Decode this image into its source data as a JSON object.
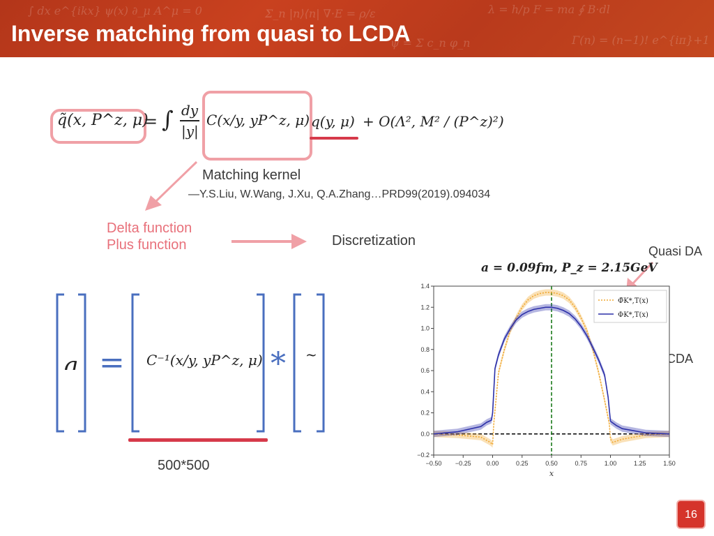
{
  "slide": {
    "title": "Inverse matching from quasi to LCDA",
    "page_number": "16"
  },
  "equation_top": {
    "lhs": "q̃(x, P^z, μ)",
    "equals": "=",
    "integral": "∫",
    "frac_num": "dy",
    "frac_den": "|y|",
    "kernel": "C(x/y, yP^z, μ)",
    "rhs": "q(y, μ)",
    "correction": "+ O(Λ², M² / (P^z)²)"
  },
  "annotations": {
    "matching_kernel": "Matching kernel",
    "reference": "—Y.S.Liu, W.Wang, J.Xu, Q.A.Zhang…PRD99(2019).094034",
    "delta_function": "Delta function",
    "plus_function": "Plus function",
    "discretization": "Discretization",
    "quasi_da": "Quasi DA",
    "lcda": "LCDA",
    "matrix_size": "500*500"
  },
  "matrix_equation": {
    "lhs_symbol": "q",
    "equals": "=",
    "kernel": "C⁻¹(x/y, yP^z, μ)",
    "star": "*",
    "tilde": "~"
  },
  "chart_data": {
    "type": "line",
    "title": "a = 0.09fm, P_z = 2.15GeV",
    "xlabel": "x",
    "ylabel": "",
    "xlim": [
      -0.5,
      1.5
    ],
    "ylim": [
      -0.2,
      1.4
    ],
    "xticks": [
      "−0.50",
      "−0.25",
      "0.00",
      "0.25",
      "0.50",
      "0.75",
      "1.00",
      "1.25",
      "1.50"
    ],
    "yticks": [
      "−0.2",
      "0.0",
      "0.2",
      "0.4",
      "0.6",
      "0.8",
      "1.0",
      "1.2",
      "1.4"
    ],
    "legend_position": "top-right",
    "legend": [
      "Φ̃K*,T(x)",
      "ΦK*,T(x)"
    ],
    "vline_x": 0.5,
    "hline_y": 0.0,
    "series": [
      {
        "name": "Φ̃K*,T(x)",
        "color": "#f0a830",
        "style": "dotted",
        "x": [
          -0.5,
          -0.3,
          -0.1,
          -0.02,
          0.0,
          0.01,
          0.05,
          0.1,
          0.15,
          0.2,
          0.25,
          0.3,
          0.35,
          0.4,
          0.45,
          0.5,
          0.55,
          0.6,
          0.65,
          0.7,
          0.75,
          0.8,
          0.85,
          0.9,
          0.95,
          0.99,
          1.0,
          1.02,
          1.1,
          1.3,
          1.5
        ],
        "y": [
          0.0,
          -0.01,
          -0.03,
          -0.08,
          -0.1,
          0.1,
          0.58,
          0.8,
          0.98,
          1.1,
          1.2,
          1.27,
          1.31,
          1.33,
          1.34,
          1.34,
          1.33,
          1.31,
          1.27,
          1.2,
          1.1,
          0.98,
          0.8,
          0.58,
          0.32,
          0.1,
          -0.05,
          -0.08,
          -0.05,
          -0.01,
          0.0
        ]
      },
      {
        "name": "ΦK*,T(x)",
        "color": "#2b2fa8",
        "style": "solid",
        "x": [
          -0.5,
          -0.3,
          -0.1,
          -0.05,
          -0.01,
          0.0,
          0.02,
          0.05,
          0.1,
          0.15,
          0.2,
          0.25,
          0.3,
          0.35,
          0.4,
          0.45,
          0.5,
          0.55,
          0.6,
          0.65,
          0.7,
          0.75,
          0.8,
          0.85,
          0.9,
          0.95,
          0.98,
          1.0,
          1.05,
          1.1,
          1.3,
          1.5
        ],
        "y": [
          0.0,
          0.02,
          0.07,
          0.11,
          0.13,
          0.2,
          0.62,
          0.75,
          0.9,
          1.0,
          1.08,
          1.13,
          1.16,
          1.18,
          1.19,
          1.2,
          1.2,
          1.19,
          1.17,
          1.14,
          1.09,
          1.02,
          0.93,
          0.82,
          0.7,
          0.56,
          0.35,
          0.12,
          0.08,
          0.05,
          0.01,
          0.0
        ]
      }
    ]
  }
}
